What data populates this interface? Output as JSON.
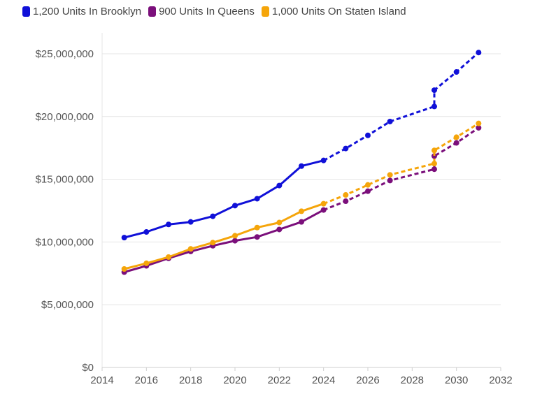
{
  "chart_data": {
    "type": "line",
    "title": "",
    "xlabel": "",
    "ylabel": "",
    "xlim": [
      2014,
      2032
    ],
    "ylim": [
      0,
      25000000
    ],
    "x_ticks": [
      2014,
      2016,
      2018,
      2020,
      2022,
      2024,
      2026,
      2028,
      2030,
      2032
    ],
    "x_tick_labels": [
      "2014",
      "2016",
      "2018",
      "2020",
      "2022",
      "2024",
      "2026",
      "2028",
      "2030",
      "2032"
    ],
    "y_ticks": [
      0,
      5000000,
      10000000,
      15000000,
      20000000,
      25000000
    ],
    "y_tick_labels": [
      "$0",
      "$5,000,000",
      "$10,000,000",
      "$15,000,000",
      "$20,000,000",
      "$25,000,000"
    ],
    "grid": true,
    "legend_position": "top-left",
    "actual_through": 2024,
    "series": [
      {
        "name": "1,200 Units In Brooklyn",
        "color": "#1010d8",
        "points": [
          [
            2015,
            10350000
          ],
          [
            2016,
            10800000
          ],
          [
            2017,
            11400000
          ],
          [
            2018,
            11600000
          ],
          [
            2019,
            12050000
          ],
          [
            2020,
            12900000
          ],
          [
            2021,
            13450000
          ],
          [
            2022,
            14500000
          ],
          [
            2023,
            16050000
          ],
          [
            2024,
            16500000
          ],
          [
            2025,
            17450000
          ],
          [
            2026,
            18500000
          ],
          [
            2027,
            19600000
          ],
          [
            2029,
            20800000
          ],
          [
            2029,
            22100000
          ],
          [
            2030,
            23550000
          ],
          [
            2031,
            25100000
          ]
        ]
      },
      {
        "name": "900 Units In Queens",
        "color": "#7b0f7b",
        "points": [
          [
            2015,
            7600000
          ],
          [
            2016,
            8100000
          ],
          [
            2017,
            8700000
          ],
          [
            2018,
            9250000
          ],
          [
            2019,
            9700000
          ],
          [
            2020,
            10100000
          ],
          [
            2021,
            10400000
          ],
          [
            2022,
            11000000
          ],
          [
            2023,
            11600000
          ],
          [
            2024,
            12550000
          ],
          [
            2025,
            13250000
          ],
          [
            2026,
            14050000
          ],
          [
            2027,
            14900000
          ],
          [
            2029,
            15800000
          ],
          [
            2029,
            16850000
          ],
          [
            2030,
            17900000
          ],
          [
            2031,
            19100000
          ]
        ]
      },
      {
        "name": "1,000 Units On Staten Island",
        "color": "#f5a50a",
        "points": [
          [
            2015,
            7850000
          ],
          [
            2016,
            8300000
          ],
          [
            2017,
            8800000
          ],
          [
            2018,
            9450000
          ],
          [
            2019,
            9950000
          ],
          [
            2020,
            10500000
          ],
          [
            2021,
            11150000
          ],
          [
            2022,
            11550000
          ],
          [
            2023,
            12450000
          ],
          [
            2024,
            13050000
          ],
          [
            2025,
            13750000
          ],
          [
            2026,
            14550000
          ],
          [
            2027,
            15350000
          ],
          [
            2029,
            16250000
          ],
          [
            2029,
            17300000
          ],
          [
            2030,
            18350000
          ],
          [
            2031,
            19450000
          ]
        ]
      }
    ]
  }
}
